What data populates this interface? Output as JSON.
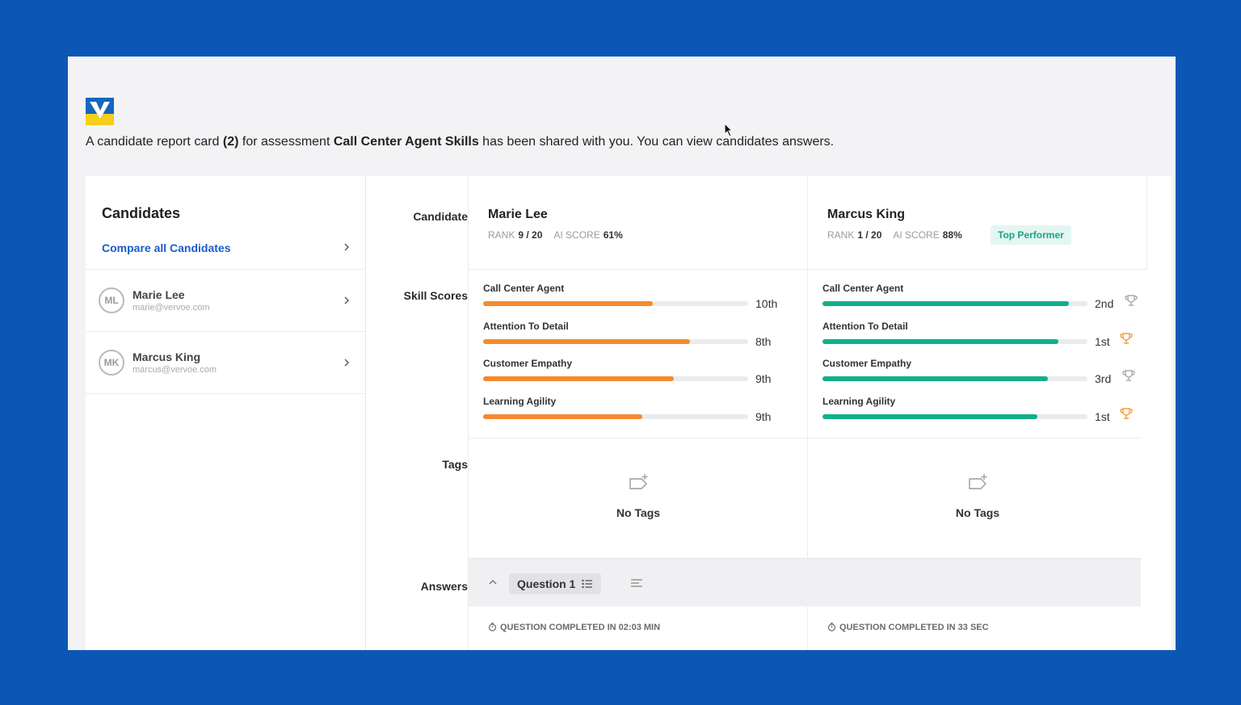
{
  "header": {
    "intro_pre": "A candidate report card (2) for assessment ",
    "intro_bold_count": "(2)",
    "intro_mid": " for assessment ",
    "assessment": "Call Center Agent Skills",
    "intro_post": " has been shared with you. You can view candidates answers.",
    "intro_lead": "A candidate report card "
  },
  "sidebar": {
    "title": "Candidates",
    "compare_label": "Compare all Candidates",
    "candidates": [
      {
        "initials": "ML",
        "name": "Marie Lee",
        "email": "marie@vervoe.com"
      },
      {
        "initials": "MK",
        "name": "Marcus King",
        "email": "marcus@vervoe.com"
      }
    ]
  },
  "row_labels": {
    "candidate": "Candidate",
    "skill_scores": "Skill Scores",
    "tags": "Tags",
    "answers": "Answers"
  },
  "meta_labels": {
    "rank": "RANK",
    "ai_score": "AI SCORE"
  },
  "columns": [
    {
      "name": "Marie Lee",
      "rank": "9 / 20",
      "ai_score": "61%",
      "badge": "",
      "accent_color": "#f58a2e",
      "skills": [
        {
          "name": "Call Center Agent",
          "value": 0.64,
          "rank": "10th",
          "trophy": false
        },
        {
          "name": "Attention To Detail",
          "value": 0.78,
          "rank": "8th",
          "trophy": false
        },
        {
          "name": "Customer Empathy",
          "value": 0.72,
          "rank": "9th",
          "trophy": false
        },
        {
          "name": "Learning Agility",
          "value": 0.6,
          "rank": "9th",
          "trophy": false
        }
      ],
      "tags_text": "No Tags",
      "question_completed": "QUESTION COMPLETED IN 02:03 MIN"
    },
    {
      "name": "Marcus King",
      "rank": "1 / 20",
      "ai_score": "88%",
      "badge": "Top Performer",
      "accent_color": "#0fb08a",
      "skills": [
        {
          "name": "Call Center Agent",
          "value": 0.93,
          "rank": "2nd",
          "trophy": true,
          "trophy_color": "#a9a9b0"
        },
        {
          "name": "Attention To Detail",
          "value": 0.89,
          "rank": "1st",
          "trophy": true,
          "trophy_color": "#f0a03a"
        },
        {
          "name": "Customer Empathy",
          "value": 0.85,
          "rank": "3rd",
          "trophy": true,
          "trophy_color": "#a9a9b0"
        },
        {
          "name": "Learning Agility",
          "value": 0.81,
          "rank": "1st",
          "trophy": true,
          "trophy_color": "#f0a03a"
        }
      ],
      "tags_text": "No Tags",
      "question_completed": "QUESTION COMPLETED IN 33 SEC"
    }
  ],
  "answers": {
    "question_label": "Question 1"
  }
}
